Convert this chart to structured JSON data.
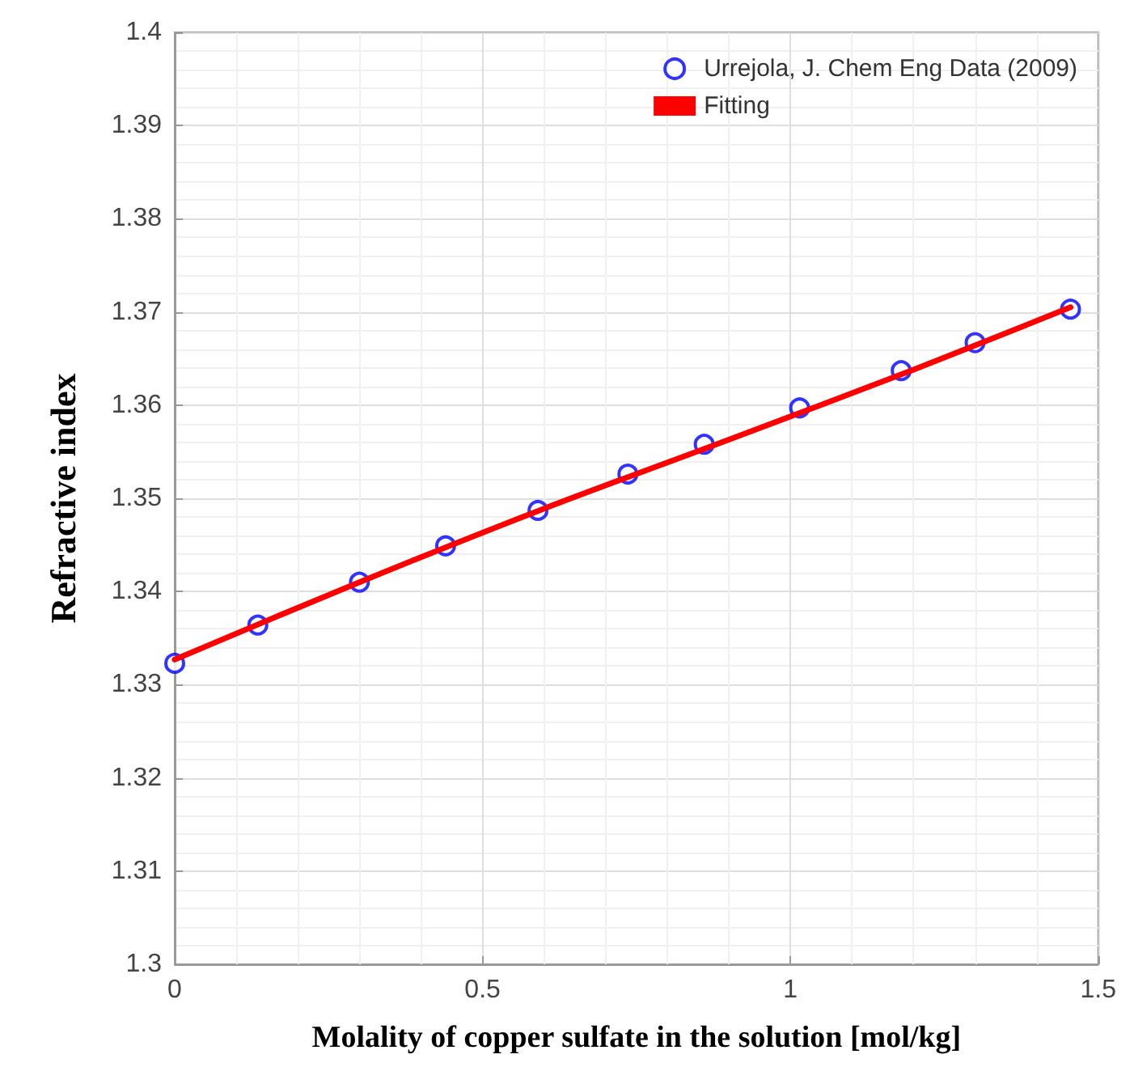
{
  "chart_data": {
    "type": "scatter",
    "xlabel": "Molality of copper sulfate in the solution [mol/kg]",
    "ylabel": "Refractive index",
    "xlim": [
      0,
      1.5
    ],
    "xticks": [
      0,
      0.5,
      1,
      1.5
    ],
    "ylim": [
      1.3,
      1.4
    ],
    "yticks": [
      1.3,
      1.31,
      1.32,
      1.33,
      1.34,
      1.35,
      1.36,
      1.37,
      1.38,
      1.39,
      1.4
    ],
    "grid": true,
    "legend": "top right",
    "series": [
      {
        "name": "Urrejola, J. Chem Eng Data (2009)",
        "marker": "circle",
        "color": "#0000ff",
        "x": [
          0,
          0.135,
          0.3,
          0.44,
          0.59,
          0.736,
          0.86,
          1.015,
          1.18,
          1.3,
          1.455
        ],
        "values": [
          1.3323,
          1.3364,
          1.341,
          1.3449,
          1.3487,
          1.3526,
          1.3558,
          1.3597,
          1.3637,
          1.3667,
          1.3703
        ]
      },
      {
        "name": "Fitting",
        "type": "line",
        "marker": "none",
        "line_style": "solid",
        "color": "#ff0000",
        "x": [
          0,
          0.3,
          0.6,
          0.9,
          1.2,
          1.455
        ],
        "values": [
          1.3327,
          1.341,
          1.3489,
          1.3563,
          1.3638,
          1.3705
        ]
      }
    ]
  }
}
